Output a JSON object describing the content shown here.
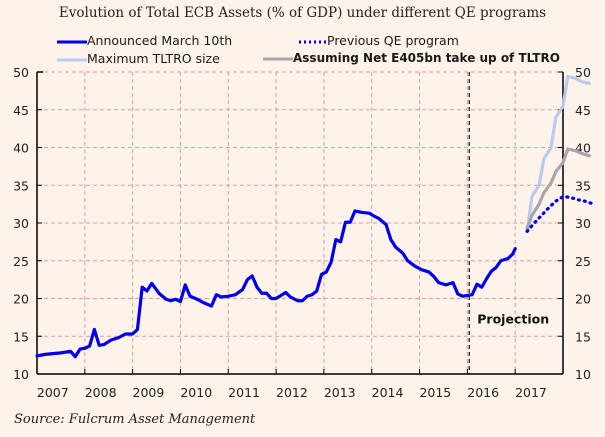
{
  "chart_data": {
    "type": "line",
    "title": "Evolution of Total ECB Assets (% of GDP) under different QE programs",
    "xlabel": "",
    "ylabel": "",
    "xlim": [
      2007,
      2018
    ],
    "ylim": [
      10,
      50
    ],
    "x_ticks": [
      "2007",
      "2008",
      "2009",
      "2010",
      "2011",
      "2012",
      "2013",
      "2014",
      "2015",
      "2016",
      "2017"
    ],
    "y_ticks": [
      10,
      15,
      20,
      25,
      30,
      35,
      40,
      45,
      50
    ],
    "grid": true,
    "legend": "top",
    "annotation": {
      "text": "Projection",
      "x": 2016.0
    },
    "source": "Source: Fulcrum Asset Management",
    "series": [
      {
        "name": "Announced March 10th",
        "color": "#0000ee",
        "style": "solid",
        "points": [
          [
            2007.0,
            12.4
          ],
          [
            2007.17,
            12.6
          ],
          [
            2007.33,
            12.7
          ],
          [
            2007.5,
            12.8
          ],
          [
            2007.6,
            12.9
          ],
          [
            2007.7,
            13.0
          ],
          [
            2007.8,
            12.3
          ],
          [
            2007.9,
            13.3
          ],
          [
            2008.0,
            13.4
          ],
          [
            2008.1,
            13.7
          ],
          [
            2008.2,
            15.9
          ],
          [
            2008.3,
            13.8
          ],
          [
            2008.4,
            13.9
          ],
          [
            2008.55,
            14.5
          ],
          [
            2008.7,
            14.8
          ],
          [
            2008.85,
            15.3
          ],
          [
            2009.0,
            15.3
          ],
          [
            2009.1,
            15.9
          ],
          [
            2009.2,
            21.5
          ],
          [
            2009.3,
            21.0
          ],
          [
            2009.4,
            22.0
          ],
          [
            2009.55,
            20.7
          ],
          [
            2009.7,
            19.9
          ],
          [
            2009.8,
            19.7
          ],
          [
            2009.9,
            19.9
          ],
          [
            2010.0,
            19.6
          ],
          [
            2010.1,
            21.8
          ],
          [
            2010.2,
            20.3
          ],
          [
            2010.35,
            19.9
          ],
          [
            2010.5,
            19.4
          ],
          [
            2010.65,
            19.0
          ],
          [
            2010.75,
            20.5
          ],
          [
            2010.85,
            20.2
          ],
          [
            2011.0,
            20.3
          ],
          [
            2011.15,
            20.5
          ],
          [
            2011.3,
            21.2
          ],
          [
            2011.4,
            22.5
          ],
          [
            2011.5,
            23.0
          ],
          [
            2011.6,
            21.5
          ],
          [
            2011.7,
            20.7
          ],
          [
            2011.8,
            20.7
          ],
          [
            2011.9,
            20.0
          ],
          [
            2012.0,
            20.0
          ],
          [
            2012.1,
            20.4
          ],
          [
            2012.2,
            20.8
          ],
          [
            2012.3,
            20.2
          ],
          [
            2012.45,
            19.7
          ],
          [
            2012.55,
            19.7
          ],
          [
            2012.65,
            20.3
          ],
          [
            2012.75,
            20.5
          ],
          [
            2012.85,
            21.0
          ],
          [
            2012.95,
            23.2
          ],
          [
            2013.05,
            23.5
          ],
          [
            2013.15,
            24.8
          ],
          [
            2013.25,
            27.8
          ],
          [
            2013.35,
            27.5
          ],
          [
            2013.45,
            30.1
          ],
          [
            2013.55,
            30.1
          ],
          [
            2013.65,
            31.6
          ],
          [
            2013.8,
            31.4
          ],
          [
            2013.95,
            31.3
          ],
          [
            2014.05,
            30.9
          ],
          [
            2014.15,
            30.6
          ],
          [
            2014.3,
            29.8
          ],
          [
            2014.4,
            27.8
          ],
          [
            2014.5,
            26.8
          ],
          [
            2014.65,
            26.0
          ],
          [
            2014.75,
            25.0
          ],
          [
            2014.9,
            24.3
          ],
          [
            2015.05,
            23.8
          ],
          [
            2015.2,
            23.5
          ],
          [
            2015.3,
            22.9
          ],
          [
            2015.4,
            22.1
          ],
          [
            2015.55,
            21.8
          ],
          [
            2015.7,
            22.1
          ],
          [
            2015.8,
            20.6
          ],
          [
            2015.9,
            20.3
          ],
          [
            2016.0,
            20.4
          ],
          [
            2016.1,
            20.5
          ],
          [
            2016.2,
            21.9
          ],
          [
            2016.3,
            21.5
          ],
          [
            2016.4,
            22.6
          ],
          [
            2016.5,
            23.6
          ],
          [
            2016.6,
            24.1
          ],
          [
            2016.7,
            25.0
          ],
          [
            2016.85,
            25.3
          ],
          [
            2016.95,
            25.9
          ],
          [
            2017.0,
            26.6
          ]
        ]
      },
      {
        "name": "Previous QE program",
        "color": "#0000ee",
        "style": "dotted",
        "points": [
          [
            2017.25,
            28.9
          ],
          [
            2017.4,
            30.0
          ],
          [
            2017.55,
            31.0
          ],
          [
            2017.7,
            32.0
          ],
          [
            2017.85,
            32.9
          ],
          [
            2018.0,
            33.5
          ],
          [
            2018.15,
            33.4
          ],
          [
            2018.3,
            33.1
          ],
          [
            2018.45,
            32.9
          ],
          [
            2018.6,
            32.6
          ]
        ]
      },
      {
        "name": "Maximum TLTRO size",
        "color": "#b8cbef",
        "style": "solid",
        "points": [
          [
            2017.25,
            28.9
          ],
          [
            2017.35,
            33.5
          ],
          [
            2017.5,
            35.0
          ],
          [
            2017.6,
            38.5
          ],
          [
            2017.75,
            40.0
          ],
          [
            2017.85,
            44.0
          ],
          [
            2018.0,
            45.5
          ],
          [
            2018.1,
            49.4
          ],
          [
            2018.25,
            49.2
          ],
          [
            2018.4,
            48.7
          ],
          [
            2018.55,
            48.5
          ]
        ]
      },
      {
        "name": "Assuming Net E405bn take up of TLTRO",
        "color": "#aaa5ad",
        "style": "solid",
        "points": [
          [
            2017.25,
            29.3
          ],
          [
            2017.35,
            31.0
          ],
          [
            2017.5,
            32.5
          ],
          [
            2017.6,
            34.0
          ],
          [
            2017.75,
            35.3
          ],
          [
            2017.85,
            36.8
          ],
          [
            2018.0,
            38.0
          ],
          [
            2018.1,
            39.8
          ],
          [
            2018.25,
            39.6
          ],
          [
            2018.4,
            39.2
          ],
          [
            2018.55,
            38.9
          ]
        ]
      }
    ]
  },
  "legend_items": [
    {
      "label": "Announced March 10th"
    },
    {
      "label": "Previous QE program"
    },
    {
      "label": "Maximum TLTRO size"
    },
    {
      "label": "Assuming Net E405bn take up of TLTRO"
    }
  ]
}
